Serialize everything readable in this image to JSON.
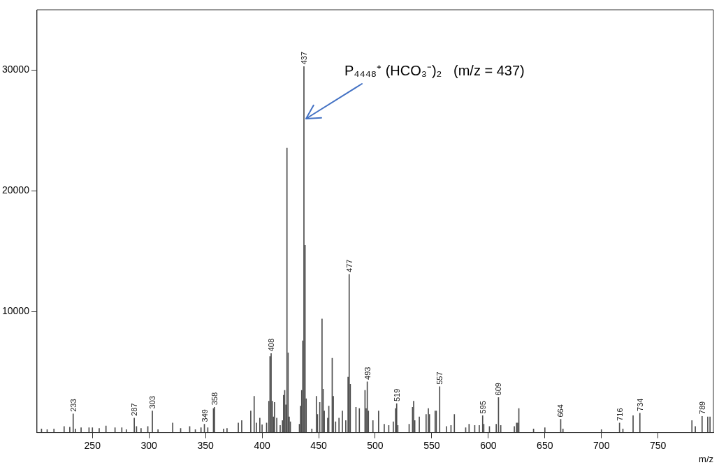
{
  "chart_data": {
    "type": "bar",
    "xlabel": "m/z",
    "color": "#4d4d4d",
    "x": [
      205,
      210,
      216,
      225,
      230,
      233,
      235,
      240,
      247,
      250,
      256,
      262,
      270,
      276,
      280,
      287,
      289,
      293,
      299,
      303,
      308,
      321,
      328,
      336,
      341,
      346,
      349,
      352,
      357,
      358,
      366,
      369,
      379,
      382,
      390,
      393,
      395,
      398,
      400,
      404,
      406,
      407,
      408,
      409,
      410,
      411,
      413,
      416,
      418,
      419,
      420,
      421,
      422,
      423,
      424,
      425,
      433,
      434,
      435,
      436,
      437,
      438,
      439,
      444,
      448,
      449,
      451,
      453,
      454,
      455,
      458,
      459,
      462,
      463,
      465,
      468,
      471,
      474,
      476,
      477,
      478,
      483,
      486,
      491,
      492,
      493,
      494,
      498,
      503,
      508,
      512,
      516,
      518,
      519,
      520,
      530,
      533,
      534,
      535,
      539,
      545,
      547,
      548,
      553,
      554,
      557,
      563,
      567,
      570,
      580,
      583,
      588,
      592,
      595,
      596,
      601,
      607,
      609,
      611,
      623,
      625,
      626,
      627,
      640,
      650,
      664,
      666,
      700,
      716,
      719,
      728,
      734,
      780,
      783,
      789,
      794,
      796
    ],
    "values": [
      300,
      250,
      300,
      500,
      450,
      1550,
      300,
      400,
      400,
      400,
      350,
      550,
      400,
      400,
      250,
      1200,
      500,
      350,
      500,
      1800,
      250,
      800,
      350,
      500,
      250,
      400,
      700,
      400,
      2000,
      2100,
      300,
      350,
      800,
      1000,
      1800,
      3000,
      800,
      1200,
      650,
      800,
      2600,
      6300,
      6550,
      2600,
      1300,
      2500,
      1200,
      600,
      1000,
      3100,
      3500,
      2300,
      23550,
      6600,
      1300,
      900,
      700,
      2200,
      3500,
      7600,
      30300,
      15500,
      2800,
      300,
      3000,
      1500,
      2500,
      9400,
      3600,
      1800,
      1200,
      2200,
      6150,
      3000,
      900,
      1200,
      1800,
      1000,
      4600,
      13100,
      4000,
      2100,
      2000,
      3500,
      2000,
      4200,
      1800,
      1000,
      1800,
      700,
      600,
      900,
      2000,
      2400,
      600,
      700,
      2100,
      2600,
      1000,
      1300,
      1500,
      2000,
      1500,
      1800,
      1800,
      3800,
      500,
      600,
      1500,
      400,
      700,
      600,
      600,
      1400,
      700,
      500,
      700,
      2900,
      600,
      500,
      800,
      800,
      2000,
      300,
      400,
      1100,
      300,
      250,
      800,
      300,
      1400,
      1600,
      1000,
      500,
      1350,
      1300,
      1300
    ],
    "xlim": [
      201,
      799
    ],
    "xticks": [
      250,
      300,
      350,
      400,
      450,
      500,
      550,
      600,
      650,
      700,
      750
    ],
    "ylim": [
      0,
      35000
    ],
    "yticks": [
      10000,
      20000,
      30000
    ],
    "annotations": [
      {
        "text": "P₄₄₄₈⁺ (HCO₃⁻)₂   (m/z = 437)",
        "x": 437,
        "y": 26000
      },
      {
        "text": "233",
        "x": 233,
        "y": 1550
      },
      {
        "text": "287",
        "x": 287,
        "y": 1200
      },
      {
        "text": "303",
        "x": 303,
        "y": 1800
      },
      {
        "text": "349",
        "x": 349,
        "y": 700
      },
      {
        "text": "358",
        "x": 358,
        "y": 2100
      },
      {
        "text": "408",
        "x": 408,
        "y": 6550
      },
      {
        "text": "437",
        "x": 437,
        "y": 30300
      },
      {
        "text": "477",
        "x": 477,
        "y": 13100
      },
      {
        "text": "493",
        "x": 493,
        "y": 4200
      },
      {
        "text": "519",
        "x": 519,
        "y": 2400
      },
      {
        "text": "557",
        "x": 557,
        "y": 3800
      },
      {
        "text": "595",
        "x": 595,
        "y": 1400
      },
      {
        "text": "609",
        "x": 609,
        "y": 2900
      },
      {
        "text": "664",
        "x": 664,
        "y": 1100
      },
      {
        "text": "716",
        "x": 716,
        "y": 800
      },
      {
        "text": "734",
        "x": 734,
        "y": 1600
      },
      {
        "text": "789",
        "x": 789,
        "y": 1350
      }
    ]
  }
}
